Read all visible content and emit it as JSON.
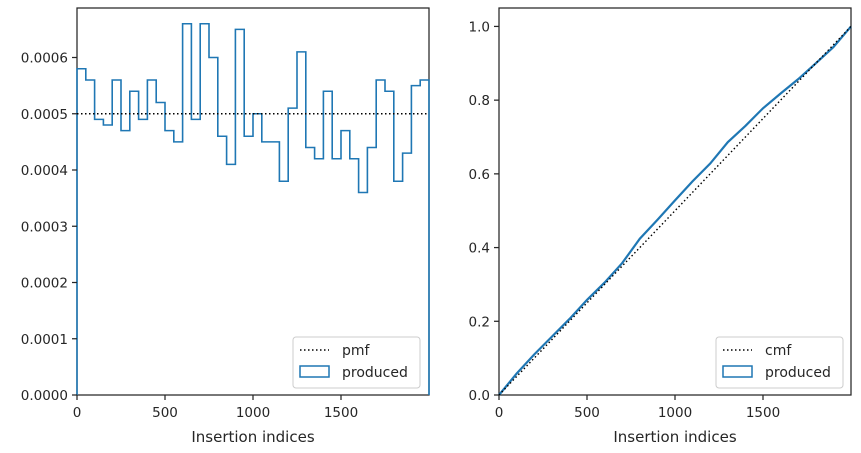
{
  "chart_data": [
    {
      "type": "step",
      "xlabel": "Insertion indices",
      "ylabel": "",
      "xlim": [
        0,
        2000
      ],
      "ylim": [
        0,
        0.000688
      ],
      "xticks": [
        0,
        500,
        1000,
        1500
      ],
      "xtick_labels": [
        "0",
        "500",
        "1000",
        "1500"
      ],
      "yticks": [
        0,
        0.0001,
        0.0002,
        0.0003,
        0.0004,
        0.0005,
        0.0006
      ],
      "ytick_labels": [
        "0.0000",
        "0.0001",
        "0.0002",
        "0.0003",
        "0.0004",
        "0.0005",
        "0.0006"
      ],
      "grid": false,
      "legend_position": "lower-right",
      "bin_width": 50,
      "series": [
        {
          "name": "produced",
          "style": "histogram-step",
          "color": "#1f77b4",
          "bin_edges_start": 0,
          "values": [
            0.00058,
            0.00056,
            0.00049,
            0.00048,
            0.00056,
            0.00047,
            0.00054,
            0.00049,
            0.00056,
            0.00052,
            0.00047,
            0.00045,
            0.00066,
            0.00049,
            0.00066,
            0.0006,
            0.00046,
            0.00041,
            0.00065,
            0.00046,
            0.0005,
            0.00045,
            0.00045,
            0.00038,
            0.00051,
            0.00061,
            0.00044,
            0.00042,
            0.00054,
            0.00042,
            0.00047,
            0.00042,
            0.00036,
            0.00044,
            0.00056,
            0.00054,
            0.00038,
            0.00043,
            0.00055,
            0.00056
          ]
        },
        {
          "name": "pmf",
          "style": "dotted",
          "color": "#000000",
          "x": [
            0,
            2000
          ],
          "y": [
            0.0005,
            0.0005
          ]
        }
      ],
      "legend": [
        "pmf",
        "produced"
      ]
    },
    {
      "type": "line",
      "xlabel": "Insertion indices",
      "ylabel": "",
      "xlim": [
        0,
        2000
      ],
      "ylim": [
        0,
        1.05
      ],
      "xticks": [
        0,
        500,
        1000,
        1500
      ],
      "xtick_labels": [
        "0",
        "500",
        "1000",
        "1500"
      ],
      "yticks": [
        0,
        0.2,
        0.4,
        0.6,
        0.8,
        1.0
      ],
      "ytick_labels": [
        "0.0",
        "0.2",
        "0.4",
        "0.6",
        "0.8",
        "1.0"
      ],
      "grid": false,
      "legend_position": "lower-right",
      "series": [
        {
          "name": "produced",
          "style": "solid",
          "color": "#1f77b4",
          "x": [
            0,
            100,
            200,
            300,
            400,
            500,
            600,
            700,
            800,
            900,
            1000,
            1100,
            1200,
            1300,
            1400,
            1500,
            1600,
            1700,
            1800,
            1900,
            2000
          ],
          "y": [
            0,
            0.058,
            0.11,
            0.158,
            0.206,
            0.258,
            0.305,
            0.358,
            0.424,
            0.475,
            0.528,
            0.58,
            0.628,
            0.686,
            0.73,
            0.778,
            0.818,
            0.857,
            0.9,
            0.944,
            1.0
          ]
        },
        {
          "name": "cmf",
          "style": "dotted",
          "color": "#000000",
          "x": [
            0,
            2000
          ],
          "y": [
            0,
            1.0
          ]
        }
      ],
      "legend": [
        "cmf",
        "produced"
      ]
    }
  ]
}
